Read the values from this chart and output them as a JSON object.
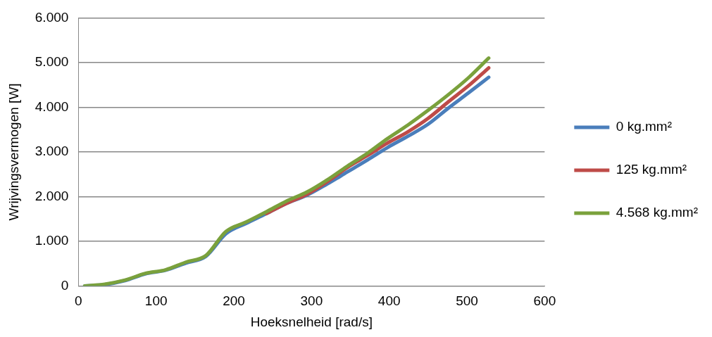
{
  "chart_data": {
    "type": "line",
    "xlabel": "Hoeksnelheid [rad/s]",
    "ylabel": "Wrijvingsvermogen [W]",
    "x": [
      8,
      34,
      60,
      86,
      112,
      138,
      164,
      190,
      216,
      242,
      268,
      294,
      320,
      346,
      372,
      398,
      424,
      450,
      476,
      502,
      528
    ],
    "series": [
      {
        "name": "0 kg.mm²",
        "color": "#4a7ebb",
        "values": [
          0,
          30,
          120,
          270,
          350,
          510,
          660,
          1170,
          1400,
          1620,
          1850,
          2030,
          2280,
          2550,
          2820,
          3100,
          3350,
          3620,
          3980,
          4320,
          4670
        ]
      },
      {
        "name": "125 kg.mm²",
        "color": "#be4b48",
        "values": [
          null,
          null,
          null,
          null,
          null,
          null,
          null,
          null,
          null,
          1620,
          1850,
          2050,
          2330,
          2650,
          2920,
          3200,
          3450,
          3750,
          4120,
          4480,
          4880
        ]
      },
      {
        "name": "4.568 kg.mm²",
        "color": "#7aa13c",
        "values": [
          0,
          40,
          130,
          280,
          360,
          530,
          680,
          1220,
          1430,
          1660,
          1900,
          2100,
          2370,
          2680,
          2970,
          3300,
          3600,
          3930,
          4280,
          4660,
          5100
        ]
      }
    ],
    "xlim": [
      0,
      600
    ],
    "xticks": [
      0,
      100,
      200,
      300,
      400,
      500,
      600
    ],
    "ylim": [
      0,
      6000
    ],
    "yticks": [
      {
        "value": 0,
        "label": "0"
      },
      {
        "value": 1000,
        "label": "1.000"
      },
      {
        "value": 2000,
        "label": "2.000"
      },
      {
        "value": 3000,
        "label": "3.000"
      },
      {
        "value": 4000,
        "label": "4.000"
      },
      {
        "value": 5000,
        "label": "5.000"
      },
      {
        "value": 6000,
        "label": "6.000"
      }
    ],
    "grid": "y",
    "legend": "right",
    "line_style": "solid"
  }
}
